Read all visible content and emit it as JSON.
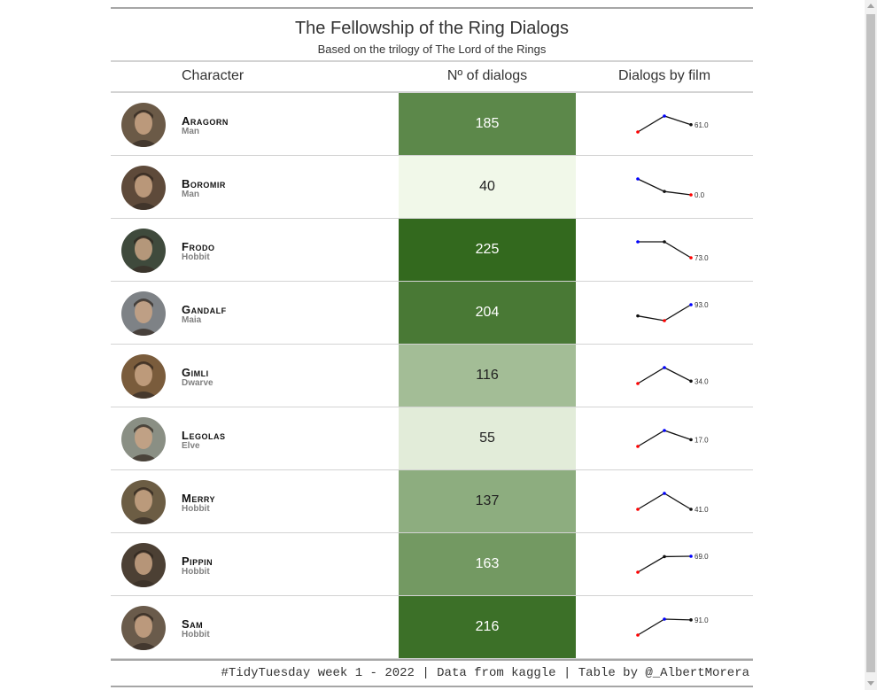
{
  "chart_data": {
    "type": "table",
    "title": "The Fellowship of the Ring Dialogs",
    "subtitle": "Based on the trilogy of The Lord of the Rings",
    "columns": [
      "Character",
      "Nº of dialogs",
      "Dialogs by film"
    ],
    "footer": "#TidyTuesday week 1 - 2022 | Data from kaggle | Table by @_AlbertMorera",
    "color_scale": [
      "#f1f8e9",
      "#33691e"
    ],
    "rows": [
      {
        "name": "Aragorn",
        "race": "Man",
        "dialogs": 185,
        "by_film": [
          50,
          74,
          61
        ],
        "last_label": "61.0",
        "avatar_color": "#6b5a47"
      },
      {
        "name": "Boromir",
        "race": "Man",
        "dialogs": 40,
        "by_film": [
          33,
          7,
          0
        ],
        "last_label": "0.0",
        "avatar_color": "#5e4a3a"
      },
      {
        "name": "Frodo",
        "race": "Hobbit",
        "dialogs": 225,
        "by_film": [
          76,
          76,
          73
        ],
        "last_label": "73.0",
        "avatar_color": "#3f4a3c"
      },
      {
        "name": "Gandalf",
        "race": "Maia",
        "dialogs": 204,
        "by_film": [
          62,
          49,
          93
        ],
        "last_label": "93.0",
        "avatar_color": "#7e8286"
      },
      {
        "name": "Gimli",
        "race": "Dwarve",
        "dialogs": 116,
        "by_film": [
          31,
          51,
          34
        ],
        "last_label": "34.0",
        "avatar_color": "#7a5c3c"
      },
      {
        "name": "Legolas",
        "race": "Elve",
        "dialogs": 55,
        "by_film": [
          6,
          32,
          17
        ],
        "last_label": "17.0",
        "avatar_color": "#8a8f84"
      },
      {
        "name": "Merry",
        "race": "Hobbit",
        "dialogs": 137,
        "by_film": [
          41,
          55,
          41
        ],
        "last_label": "41.0",
        "avatar_color": "#6c5d44"
      },
      {
        "name": "Pippin",
        "race": "Hobbit",
        "dialogs": 163,
        "by_film": [
          26,
          68,
          69
        ],
        "last_label": "69.0",
        "avatar_color": "#4c4034"
      },
      {
        "name": "Sam",
        "race": "Hobbit",
        "dialogs": 216,
        "by_film": [
          31,
          94,
          91
        ],
        "last_label": "91.0",
        "avatar_color": "#6a5b4b"
      }
    ]
  }
}
